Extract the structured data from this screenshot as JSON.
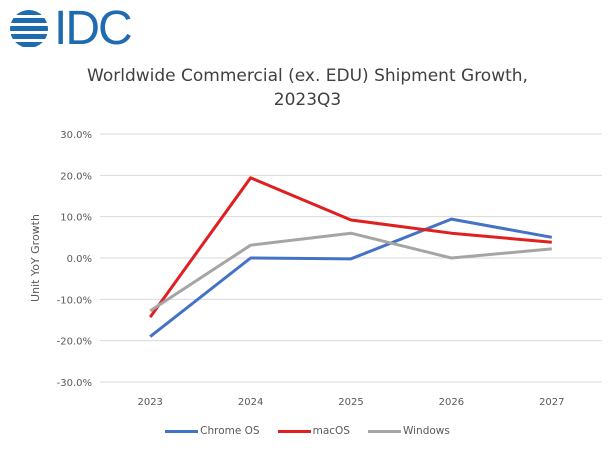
{
  "logo": {
    "text": "IDC",
    "color": "#1f6bb0"
  },
  "chart_data": {
    "type": "line",
    "title": "Worldwide Commercial (ex. EDU) Shipment Growth,",
    "subtitle": "2023Q3",
    "xlabel": "",
    "ylabel": "Unit YoY Growth",
    "categories": [
      "2023",
      "2024",
      "2025",
      "2026",
      "2027"
    ],
    "ylim": [
      -30,
      30
    ],
    "yticks": [
      30,
      20,
      10,
      0,
      -10,
      -20,
      -30
    ],
    "ytick_labels": [
      "30.0%",
      "20.0%",
      "10.0%",
      "0.0%",
      "-10.0%",
      "-20.0%",
      "-30.0%"
    ],
    "grid": true,
    "legend_position": "bottom",
    "series": [
      {
        "name": "Chrome OS",
        "color": "#4472c4",
        "values": [
          -19.0,
          0.0,
          -0.2,
          9.4,
          5.0
        ]
      },
      {
        "name": "macOS",
        "color": "#e02020",
        "values": [
          -14.3,
          19.4,
          9.2,
          6.0,
          3.8
        ]
      },
      {
        "name": "Windows",
        "color": "#a5a5a5",
        "values": [
          -12.8,
          3.1,
          6.0,
          0.0,
          2.2
        ]
      }
    ]
  }
}
